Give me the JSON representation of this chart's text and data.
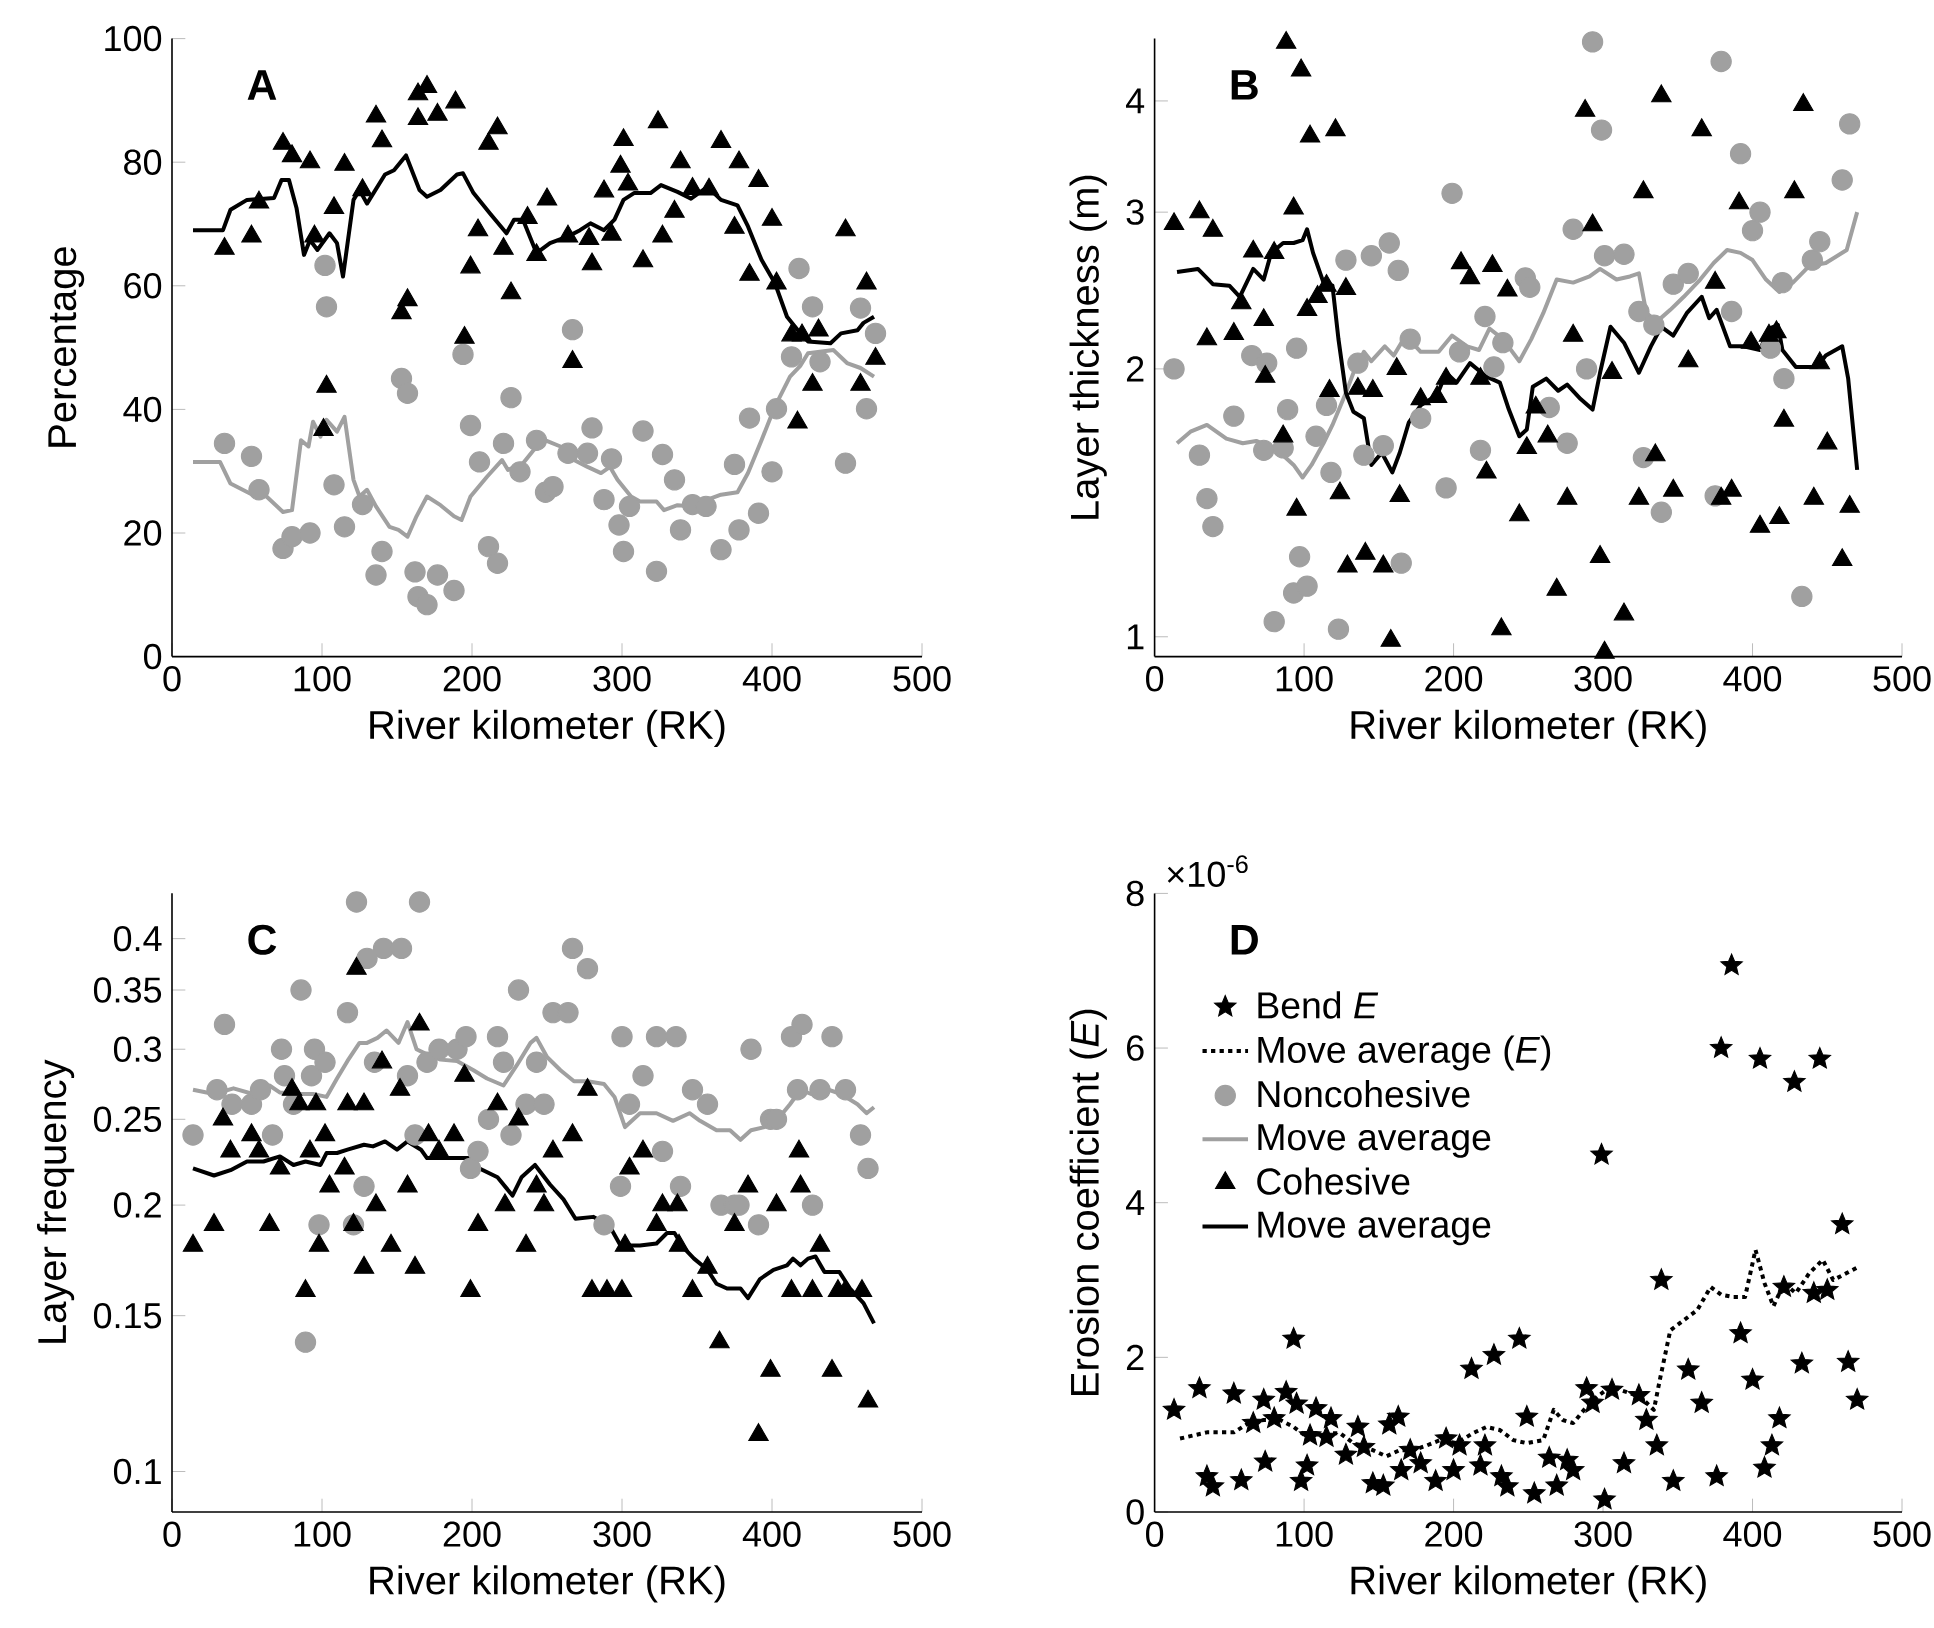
{
  "chart_data": [
    {
      "type": "scatter",
      "title": "A",
      "xlabel": "River kilometer (RK)",
      "ylabel": "Percentage",
      "xlim": [
        0,
        500
      ],
      "ylim": [
        0,
        100
      ],
      "xticks": [
        0,
        100,
        200,
        300,
        400,
        500
      ],
      "yticks": [
        0,
        20,
        40,
        60,
        80,
        100
      ],
      "series": [
        {
          "marker": "circle",
          "color": "#a0a0a0",
          "x": [
            35,
            53,
            58,
            74,
            80,
            92,
            102,
            103,
            108,
            115,
            127,
            136,
            140,
            153,
            157,
            162,
            164,
            170,
            177,
            188,
            194,
            199,
            205,
            211,
            217,
            221,
            226,
            232,
            243,
            249,
            254,
            264,
            267,
            277,
            280,
            288,
            293,
            298,
            301,
            305,
            314,
            323,
            327,
            335,
            339,
            347,
            356,
            366,
            375,
            378,
            385,
            391,
            400,
            403,
            413,
            418,
            427,
            432,
            449,
            459,
            463,
            469
          ],
          "values": [
            34.5,
            32.4,
            27,
            17.5,
            19.4,
            20,
            63.3,
            56.6,
            27.8,
            21,
            24.6,
            13.2,
            17,
            45,
            42.6,
            13.7,
            9.7,
            8.4,
            13.2,
            10.7,
            48.9,
            37.4,
            31.5,
            17.8,
            15.1,
            34.5,
            41.9,
            29.9,
            35,
            26.6,
            27.5,
            32.9,
            52.9,
            32.9,
            37,
            25.4,
            32,
            21.3,
            17,
            24.3,
            36.5,
            13.8,
            32.7,
            28.6,
            20.5,
            24.6,
            24.3,
            17.3,
            31.1,
            20.5,
            38.6,
            23.2,
            29.9,
            40.1,
            48.5,
            62.8,
            56.6,
            47.7,
            31.3,
            56.4,
            40.1,
            52.3
          ]
        },
        {
          "type": "line",
          "line_style": "solid",
          "color": "#a0a0a0",
          "x": [
            14,
            32,
            39,
            52,
            63,
            74,
            80,
            86,
            91,
            94,
            99,
            103,
            110,
            115,
            121,
            125,
            130,
            136,
            145,
            151,
            157,
            163,
            170,
            179,
            188,
            193,
            199,
            210,
            220,
            224,
            234,
            241,
            249,
            259,
            268,
            277,
            286,
            292,
            297,
            306,
            312,
            323,
            328,
            337,
            348,
            357,
            366,
            377,
            384,
            393,
            402,
            412,
            419,
            424,
            441,
            450,
            459,
            468
          ],
          "values": [
            31.5,
            31.5,
            28,
            26.4,
            25.9,
            23.4,
            23.7,
            35,
            34,
            38,
            35.6,
            38.3,
            36.4,
            38.8,
            28.6,
            25.9,
            27,
            24.3,
            21,
            20.5,
            19.4,
            22.7,
            25.9,
            24.5,
            22.7,
            22.1,
            25.9,
            29.1,
            31.8,
            30.2,
            31.3,
            33.4,
            35,
            34,
            31.8,
            30.7,
            29.7,
            30.7,
            28.6,
            25.9,
            25.1,
            25.1,
            23.7,
            24.5,
            24.3,
            25.4,
            26.2,
            26.6,
            29.7,
            35,
            40.5,
            45.3,
            47.1,
            49.1,
            49.6,
            47.5,
            46.7,
            45.3
          ]
        },
        {
          "marker": "triangle",
          "color": "#000000",
          "x": [
            35,
            53,
            58,
            74,
            80,
            92,
            95,
            103,
            101,
            108,
            115,
            127,
            136,
            140,
            153,
            157,
            164,
            164,
            170,
            177,
            189,
            195,
            199,
            204,
            211,
            217,
            221,
            226,
            237,
            250,
            243,
            264,
            267,
            278,
            280,
            288,
            293,
            299,
            301,
            304,
            314,
            324,
            327,
            335,
            339,
            347,
            358,
            366,
            375,
            378,
            385,
            391,
            400,
            403,
            413,
            417,
            420,
            427,
            431,
            449,
            459,
            463,
            469
          ],
          "values": [
            66,
            68,
            73.5,
            83,
            81,
            80,
            68,
            43.7,
            36.7,
            72.6,
            79.6,
            75.5,
            87.4,
            83.4,
            55.6,
            57.7,
            87,
            91,
            92.2,
            87.7,
            89.7,
            51.6,
            63,
            69,
            83,
            85.5,
            66,
            58.8,
            71,
            74,
            65,
            68,
            47.7,
            67.6,
            63.5,
            75.3,
            68.3,
            79.3,
            83.6,
            76.4,
            64,
            86.5,
            68,
            72,
            80,
            75.7,
            75.6,
            83.3,
            69.4,
            80,
            61.8,
            77,
            70.7,
            60.4,
            52,
            37.9,
            52,
            44,
            52.8,
            69,
            44,
            60.4,
            48.2
          ]
        },
        {
          "type": "line",
          "line_style": "solid",
          "color": "#000000",
          "x": [
            14,
            34,
            39,
            50,
            68,
            73,
            78,
            83,
            88,
            92,
            97,
            105,
            110,
            114,
            121,
            125,
            130,
            142,
            148,
            156,
            165,
            170,
            179,
            190,
            194,
            201,
            212,
            223,
            228,
            234,
            243,
            252,
            264,
            272,
            279,
            288,
            295,
            301,
            308,
            319,
            326,
            337,
            346,
            357,
            366,
            377,
            384,
            393,
            402,
            410,
            419,
            424,
            439,
            446,
            457,
            461,
            468
          ],
          "values": [
            69,
            69,
            72.3,
            73.9,
            74.2,
            77.1,
            77.1,
            72.6,
            65,
            67.4,
            65.8,
            68.5,
            66.9,
            61.5,
            73.9,
            75.5,
            73.3,
            78,
            78.7,
            81.1,
            75.5,
            74.4,
            75.5,
            78,
            78.2,
            75,
            71.7,
            68.5,
            70.7,
            70.7,
            65.3,
            66.9,
            68,
            69,
            70.1,
            69,
            70.7,
            73.9,
            75,
            75,
            76.3,
            75.2,
            74.1,
            76,
            73.9,
            73,
            69.6,
            64.2,
            60.4,
            55,
            52.3,
            51,
            50.7,
            52.3,
            52.8,
            54,
            55
          ]
        }
      ]
    },
    {
      "type": "scatter",
      "title": "B",
      "xlabel": "River kilometer (RK)",
      "ylabel": "Layer thickness (m)",
      "log": "y",
      "xlim": [
        0,
        500
      ],
      "ylim": [
        0.95,
        4.7
      ],
      "xticks": [
        0,
        100,
        200,
        300,
        400,
        500
      ],
      "yticks": [
        1,
        2,
        3,
        4
      ],
      "series": [
        {
          "marker": "circle",
          "color": "#a0a0a0",
          "x": [
            13,
            30,
            35,
            39,
            53,
            65,
            73,
            75,
            80,
            86,
            89,
            93,
            95,
            97,
            102,
            108,
            115,
            118,
            123,
            128,
            136,
            140,
            145,
            153,
            157,
            163,
            165,
            171,
            178,
            195,
            199,
            204,
            218,
            221,
            227,
            233,
            248,
            251,
            264,
            276,
            280,
            289,
            293,
            299,
            301,
            314,
            324,
            327,
            334,
            339,
            347,
            357,
            375,
            379,
            386,
            392,
            400,
            405,
            412,
            420,
            421,
            433,
            440,
            445,
            460,
            465
          ],
          "values": [
            2.0,
            1.6,
            1.43,
            1.33,
            1.77,
            2.07,
            1.62,
            2.03,
            1.04,
            1.63,
            1.8,
            1.12,
            2.11,
            1.23,
            1.14,
            1.68,
            1.82,
            1.53,
            1.02,
            2.65,
            2.03,
            1.6,
            2.68,
            1.64,
            2.77,
            2.58,
            1.21,
            2.16,
            1.76,
            1.47,
            3.15,
            2.09,
            1.62,
            2.29,
            2.01,
            2.14,
            2.53,
            2.47,
            1.81,
            1.65,
            2.87,
            2.0,
            4.66,
            3.71,
            2.68,
            2.69,
            2.32,
            1.59,
            2.24,
            1.38,
            2.49,
            2.56,
            1.44,
            4.43,
            2.32,
            3.49,
            2.86,
            3.0,
            2.11,
            2.5,
            1.95,
            1.11,
            2.65,
            2.78,
            3.26,
            3.77
          ]
        },
        {
          "type": "line",
          "line_style": "solid",
          "color": "#a0a0a0",
          "x": [
            15,
            24,
            35,
            48,
            59,
            68,
            75,
            84,
            93,
            99,
            105,
            113,
            119,
            128,
            134,
            140,
            145,
            154,
            160,
            168,
            178,
            190,
            199,
            209,
            217,
            224,
            233,
            244,
            252,
            260,
            269,
            280,
            291,
            298,
            309,
            318,
            324,
            329,
            336,
            345,
            354,
            365,
            374,
            383,
            392,
            400,
            409,
            418,
            427,
            438,
            449,
            463,
            470
          ],
          "values": [
            1.65,
            1.7,
            1.73,
            1.67,
            1.65,
            1.66,
            1.64,
            1.61,
            1.56,
            1.51,
            1.56,
            1.65,
            1.73,
            1.88,
            2.0,
            2.09,
            2.04,
            2.12,
            2.07,
            2.18,
            2.09,
            2.09,
            2.18,
            2.12,
            2.1,
            2.22,
            2.16,
            2.04,
            2.16,
            2.31,
            2.52,
            2.5,
            2.54,
            2.59,
            2.52,
            2.54,
            2.56,
            2.31,
            2.26,
            2.33,
            2.41,
            2.52,
            2.63,
            2.72,
            2.7,
            2.65,
            2.52,
            2.44,
            2.5,
            2.61,
            2.63,
            2.72,
            3.0
          ]
        },
        {
          "marker": "triangle",
          "color": "#000000",
          "x": [
            13,
            30,
            39,
            35,
            53,
            58,
            66,
            73,
            74,
            80,
            86,
            88,
            93,
            95,
            98,
            102,
            104,
            109,
            115,
            117,
            121,
            124,
            128,
            129,
            136,
            141,
            146,
            153,
            158,
            162,
            164,
            178,
            189,
            195,
            205,
            211,
            218,
            222,
            226,
            232,
            236,
            244,
            249,
            255,
            263,
            269,
            276,
            280,
            288,
            293,
            298,
            301,
            306,
            314,
            324,
            327,
            335,
            339,
            347,
            357,
            366,
            375,
            379,
            386,
            391,
            399,
            405,
            411,
            416,
            418,
            421,
            428,
            434,
            441,
            445,
            450,
            460,
            465
          ],
          "values": [
            2.91,
            3.0,
            2.86,
            2.16,
            2.19,
            2.37,
            2.71,
            2.27,
            1.96,
            2.7,
            1.68,
            4.65,
            3.03,
            1.39,
            4.33,
            2.33,
            3.65,
            2.41,
            2.48,
            1.89,
            3.71,
            1.45,
            2.46,
            1.2,
            1.9,
            1.24,
            1.89,
            1.2,
            0.99,
            2.0,
            1.44,
            1.85,
            1.86,
            1.95,
            2.63,
            2.53,
            1.95,
            1.53,
            2.61,
            1.02,
            2.45,
            1.37,
            1.63,
            1.81,
            1.68,
            1.13,
            1.43,
            2.18,
            3.9,
            2.9,
            1.23,
            0.96,
            1.98,
            1.06,
            1.43,
            3.16,
            1.6,
            4.05,
            1.46,
            2.04,
            3.71,
            2.5,
            1.43,
            1.46,
            3.07,
            2.14,
            1.33,
            2.18,
            2.2,
            1.36,
            1.75,
            3.16,
            3.96,
            1.43,
            2.03,
            1.65,
            1.22,
            1.4
          ]
        },
        {
          "type": "line",
          "line_style": "solid",
          "color": "#000000",
          "x": [
            15,
            29,
            39,
            50,
            57,
            66,
            73,
            78,
            86,
            93,
            99,
            102,
            106,
            113,
            119,
            123,
            128,
            133,
            140,
            145,
            152,
            159,
            164,
            170,
            178,
            189,
            195,
            202,
            211,
            222,
            231,
            237,
            244,
            249,
            253,
            262,
            270,
            276,
            285,
            293,
            298,
            305,
            314,
            324,
            332,
            339,
            347,
            356,
            366,
            371,
            376,
            385,
            394,
            405,
            411,
            417,
            420,
            429,
            443,
            449,
            460,
            464,
            470
          ],
          "values": [
            2.57,
            2.59,
            2.49,
            2.48,
            2.41,
            2.59,
            2.52,
            2.7,
            2.77,
            2.77,
            2.79,
            2.87,
            2.7,
            2.5,
            2.48,
            2.16,
            1.88,
            1.79,
            1.76,
            1.56,
            1.61,
            1.53,
            1.61,
            1.74,
            1.82,
            1.87,
            1.98,
            1.93,
            2.03,
            1.96,
            1.93,
            1.8,
            1.68,
            1.71,
            1.91,
            1.95,
            1.89,
            1.92,
            1.85,
            1.8,
            1.98,
            2.23,
            2.14,
            1.98,
            2.12,
            2.23,
            2.18,
            2.31,
            2.41,
            2.28,
            2.33,
            2.12,
            2.12,
            2.1,
            2.22,
            2.24,
            2.1,
            2.01,
            2.01,
            2.07,
            2.12,
            1.95,
            1.54
          ]
        }
      ]
    },
    {
      "type": "scatter",
      "title": "C",
      "xlabel": "River kilometer (RK)",
      "ylabel": "Layer frequency",
      "log": "y",
      "xlim": [
        0,
        500
      ],
      "ylim": [
        0.09,
        0.45
      ],
      "xticks": [
        0,
        100,
        200,
        300,
        400,
        500
      ],
      "yticks": [
        0.1,
        0.15,
        0.2,
        0.25,
        0.3,
        0.35,
        0.4
      ],
      "series": [
        {
          "marker": "circle",
          "color": "#a0a0a0",
          "x": [
            14,
            30,
            35,
            40,
            53,
            59,
            67,
            73,
            75,
            81,
            86,
            89,
            93,
            95,
            98,
            102,
            117,
            121,
            123,
            128,
            130,
            135,
            141,
            153,
            157,
            162,
            165,
            170,
            178,
            190,
            196,
            199,
            204,
            211,
            217,
            221,
            226,
            231,
            236,
            243,
            248,
            254,
            264,
            267,
            277,
            288,
            299,
            300,
            305,
            314,
            323,
            327,
            336,
            339,
            347,
            357,
            366,
            375,
            378,
            386,
            391,
            399,
            403,
            413,
            417,
            420,
            427,
            432,
            440,
            449,
            459,
            464
          ],
          "values": [
            0.24,
            0.27,
            0.32,
            0.26,
            0.26,
            0.27,
            0.24,
            0.3,
            0.28,
            0.26,
            0.35,
            0.14,
            0.28,
            0.3,
            0.19,
            0.29,
            0.33,
            0.19,
            0.44,
            0.21,
            0.38,
            0.29,
            0.39,
            0.39,
            0.28,
            0.24,
            0.44,
            0.29,
            0.3,
            0.3,
            0.31,
            0.22,
            0.23,
            0.25,
            0.31,
            0.29,
            0.24,
            0.35,
            0.26,
            0.29,
            0.26,
            0.33,
            0.33,
            0.39,
            0.37,
            0.19,
            0.21,
            0.31,
            0.26,
            0.28,
            0.31,
            0.23,
            0.31,
            0.21,
            0.27,
            0.26,
            0.2,
            0.2,
            0.2,
            0.3,
            0.19,
            0.25,
            0.25,
            0.31,
            0.27,
            0.32,
            0.2,
            0.27,
            0.31,
            0.27,
            0.24,
            0.22
          ]
        },
        {
          "type": "line",
          "line_style": "solid",
          "color": "#a0a0a0",
          "x": [
            14,
            28,
            41,
            54,
            65,
            72,
            83,
            94,
            103,
            110,
            117,
            125,
            130,
            137,
            143,
            151,
            157,
            163,
            170,
            179,
            190,
            201,
            210,
            221,
            230,
            239,
            243,
            250,
            259,
            268,
            277,
            288,
            295,
            302,
            312,
            323,
            334,
            345,
            352,
            363,
            372,
            379,
            386,
            395,
            403,
            412,
            419,
            426,
            435,
            446,
            457,
            463,
            468
          ],
          "values": [
            0.27,
            0.267,
            0.271,
            0.267,
            0.273,
            0.268,
            0.267,
            0.267,
            0.265,
            0.278,
            0.291,
            0.305,
            0.305,
            0.309,
            0.315,
            0.305,
            0.322,
            0.3,
            0.296,
            0.292,
            0.291,
            0.284,
            0.278,
            0.273,
            0.288,
            0.305,
            0.309,
            0.294,
            0.284,
            0.276,
            0.276,
            0.274,
            0.265,
            0.245,
            0.254,
            0.254,
            0.249,
            0.254,
            0.249,
            0.243,
            0.243,
            0.237,
            0.243,
            0.245,
            0.249,
            0.26,
            0.27,
            0.267,
            0.271,
            0.267,
            0.26,
            0.254,
            0.258
          ]
        },
        {
          "marker": "triangle",
          "color": "#000000",
          "x": [
            14,
            28,
            34,
            39,
            53,
            58,
            65,
            72,
            80,
            85,
            89,
            92,
            96,
            98,
            102,
            105,
            115,
            117,
            121,
            123,
            128,
            128,
            136,
            140,
            146,
            152,
            157,
            162,
            165,
            171,
            178,
            188,
            195,
            199,
            204,
            217,
            222,
            231,
            236,
            243,
            248,
            254,
            267,
            277,
            280,
            290,
            293,
            300,
            302,
            305,
            314,
            323,
            327,
            337,
            338,
            347,
            357,
            365,
            375,
            378,
            384,
            391,
            399,
            403,
            413,
            418,
            419,
            427,
            432,
            440,
            444,
            449,
            460,
            464
          ],
          "values": [
            0.18,
            0.19,
            0.25,
            0.23,
            0.24,
            0.23,
            0.19,
            0.22,
            0.27,
            0.26,
            0.16,
            0.23,
            0.26,
            0.18,
            0.24,
            0.21,
            0.22,
            0.26,
            0.19,
            0.37,
            0.17,
            0.26,
            0.2,
            0.29,
            0.18,
            0.27,
            0.21,
            0.17,
            0.32,
            0.24,
            0.23,
            0.24,
            0.28,
            0.16,
            0.19,
            0.26,
            0.2,
            0.25,
            0.18,
            0.21,
            0.2,
            0.23,
            0.24,
            0.27,
            0.16,
            0.16,
            null,
            0.16,
            0.18,
            0.22,
            0.23,
            0.19,
            0.2,
            0.2,
            0.18,
            0.16,
            0.17,
            0.14,
            0.19,
            null,
            0.21,
            0.11,
            0.13,
            0.2,
            0.16,
            0.23,
            0.21,
            0.16,
            0.18,
            0.13,
            0.16,
            0.16,
            0.16,
            0.12
          ]
        },
        {
          "type": "line",
          "line_style": "solid",
          "color": "#000000",
          "x": [
            14,
            28,
            39,
            50,
            61,
            72,
            81,
            89,
            99,
            103,
            110,
            117,
            128,
            134,
            142,
            150,
            157,
            166,
            170,
            179,
            188,
            199,
            205,
            217,
            227,
            233,
            242,
            252,
            261,
            269,
            281,
            292,
            299,
            312,
            323,
            330,
            335,
            341,
            348,
            357,
            363,
            370,
            379,
            384,
            392,
            401,
            410,
            414,
            419,
            424,
            429,
            435,
            445,
            452,
            461,
            468
          ],
          "values": [
            0.22,
            0.216,
            0.219,
            0.224,
            0.224,
            0.227,
            0.222,
            0.224,
            0.222,
            0.229,
            0.229,
            0.231,
            0.234,
            0.233,
            0.236,
            0.231,
            0.236,
            0.231,
            0.226,
            0.226,
            0.226,
            0.226,
            0.22,
            0.215,
            0.205,
            0.215,
            0.222,
            0.211,
            0.203,
            0.193,
            0.194,
            0.189,
            0.18,
            0.18,
            0.181,
            0.186,
            0.186,
            0.179,
            0.174,
            0.169,
            0.163,
            0.161,
            0.161,
            0.157,
            0.165,
            0.169,
            0.171,
            0.174,
            0.171,
            0.174,
            0.175,
            0.168,
            0.168,
            0.161,
            0.155,
            0.147
          ]
        }
      ]
    },
    {
      "type": "scatter",
      "title": "D",
      "xlabel": "River kilometer (RK)",
      "ylabel": "Erosion coefficient (*E*)",
      "annotations": [
        "×10$^{-6}$"
      ],
      "legend": "top left",
      "xlim": [
        0,
        500
      ],
      "ylim": [
        0,
        8
      ],
      "xticks": [
        0,
        100,
        200,
        300,
        400,
        500
      ],
      "yticks": [
        0,
        2,
        4,
        6,
        8
      ],
      "series": [
        {
          "name": "Bend *E*",
          "marker": "star",
          "color": "#000000",
          "x": [
            13,
            30,
            35,
            39,
            53,
            58,
            66,
            73,
            74,
            80,
            88,
            93,
            95,
            98,
            102,
            104,
            108,
            115,
            118,
            128,
            136,
            140,
            146,
            153,
            157,
            163,
            165,
            171,
            178,
            188,
            195,
            200,
            204,
            212,
            218,
            221,
            227,
            232,
            236,
            244,
            249,
            254,
            264,
            269,
            276,
            280,
            289,
            293,
            299,
            301,
            306,
            314,
            324,
            329,
            336,
            339,
            347,
            357,
            366,
            376,
            379,
            386,
            392,
            400,
            405,
            408,
            413,
            418,
            421,
            428,
            433,
            441,
            445,
            450,
            460,
            464,
            470
          ],
          "values": [
            1.32,
            1.6,
            0.46,
            0.33,
            1.53,
            0.41,
            1.15,
            1.45,
            0.65,
            1.21,
            1.55,
            2.24,
            1.4,
            0.4,
            0.6,
            0.99,
            1.34,
            0.97,
            1.21,
            0.74,
            1.1,
            0.84,
            0.37,
            0.34,
            1.13,
            1.23,
            0.54,
            0.8,
            0.63,
            0.4,
            0.95,
            0.54,
            0.86,
            1.85,
            0.6,
            0.86,
            2.03,
            0.46,
            0.33,
            2.24,
            1.23,
            0.24,
            0.7,
            0.34,
            0.67,
            0.54,
            1.6,
            1.41,
            4.62,
            0.16,
            1.58,
            0.63,
            1.51,
            1.19,
            0.86,
            3.0,
            0.4,
            1.84,
            1.41,
            0.46,
            6.0,
            7.07,
            2.31,
            1.71,
            5.86,
            0.57,
            0.86,
            1.21,
            2.91,
            5.56,
            1.92,
            2.83,
            5.86,
            2.87,
            3.72,
            1.94,
            1.45
          ]
        },
        {
          "type": "line",
          "name": "Move average (*E*)",
          "line_style": "dotted",
          "color": "#000000",
          "x": [
            17,
            35,
            53,
            63,
            73,
            84,
            93,
            102,
            113,
            124,
            133,
            146,
            155,
            164,
            173,
            182,
            191,
            202,
            213,
            222,
            231,
            240,
            249,
            260,
            267,
            273,
            280,
            289,
            296,
            305,
            316,
            325,
            334,
            338,
            345,
            354,
            363,
            372,
            379,
            387,
            395,
            402,
            408,
            414,
            421,
            429,
            438,
            447,
            454,
            463,
            470
          ],
          "values": [
            0.95,
            1.03,
            1.03,
            1.15,
            1.19,
            1.19,
            1.1,
            0.97,
            1.02,
            1.02,
            0.89,
            0.8,
            0.72,
            0.8,
            0.8,
            0.86,
            0.93,
            0.89,
            1.02,
            1.1,
            1.06,
            0.93,
            0.89,
            0.93,
            1.32,
            1.19,
            1.15,
            1.36,
            1.49,
            1.62,
            1.55,
            1.49,
            1.32,
            1.71,
            2.35,
            2.48,
            2.61,
            2.91,
            2.81,
            2.78,
            2.78,
            3.39,
            2.96,
            2.66,
            2.96,
            2.83,
            3.09,
            3.26,
            3.0,
            3.09,
            3.16
          ]
        },
        {
          "name": "Noncohesive",
          "marker": "circle",
          "color": "#a0a0a0"
        },
        {
          "type": "line",
          "name": "Move average",
          "line_style": "solid",
          "color": "#a0a0a0"
        },
        {
          "name": "Cohesive",
          "marker": "triangle",
          "color": "#000000"
        },
        {
          "type": "line",
          "name": "Move average",
          "line_style": "solid",
          "color": "#000000"
        }
      ]
    }
  ]
}
